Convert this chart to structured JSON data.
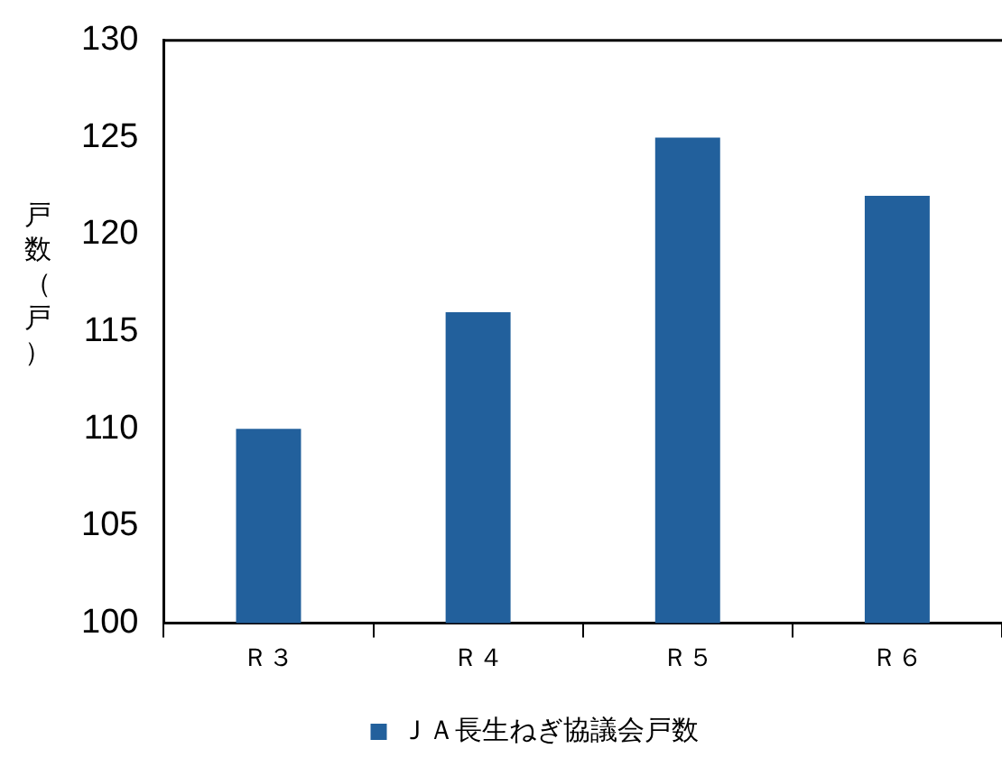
{
  "chart_data": {
    "type": "bar",
    "ylabel": "戸数（戸）",
    "categories": [
      "Ｒ３",
      "Ｒ４",
      "Ｒ５",
      "Ｒ６"
    ],
    "series": [
      {
        "name": "ＪＡ長生ねぎ協議会戸数",
        "color": "#22609c",
        "values": [
          110,
          116,
          125,
          122
        ]
      }
    ],
    "ylim": [
      100,
      130
    ],
    "yticks": [
      100,
      105,
      110,
      115,
      120,
      125,
      130
    ],
    "legend": "bottom"
  }
}
